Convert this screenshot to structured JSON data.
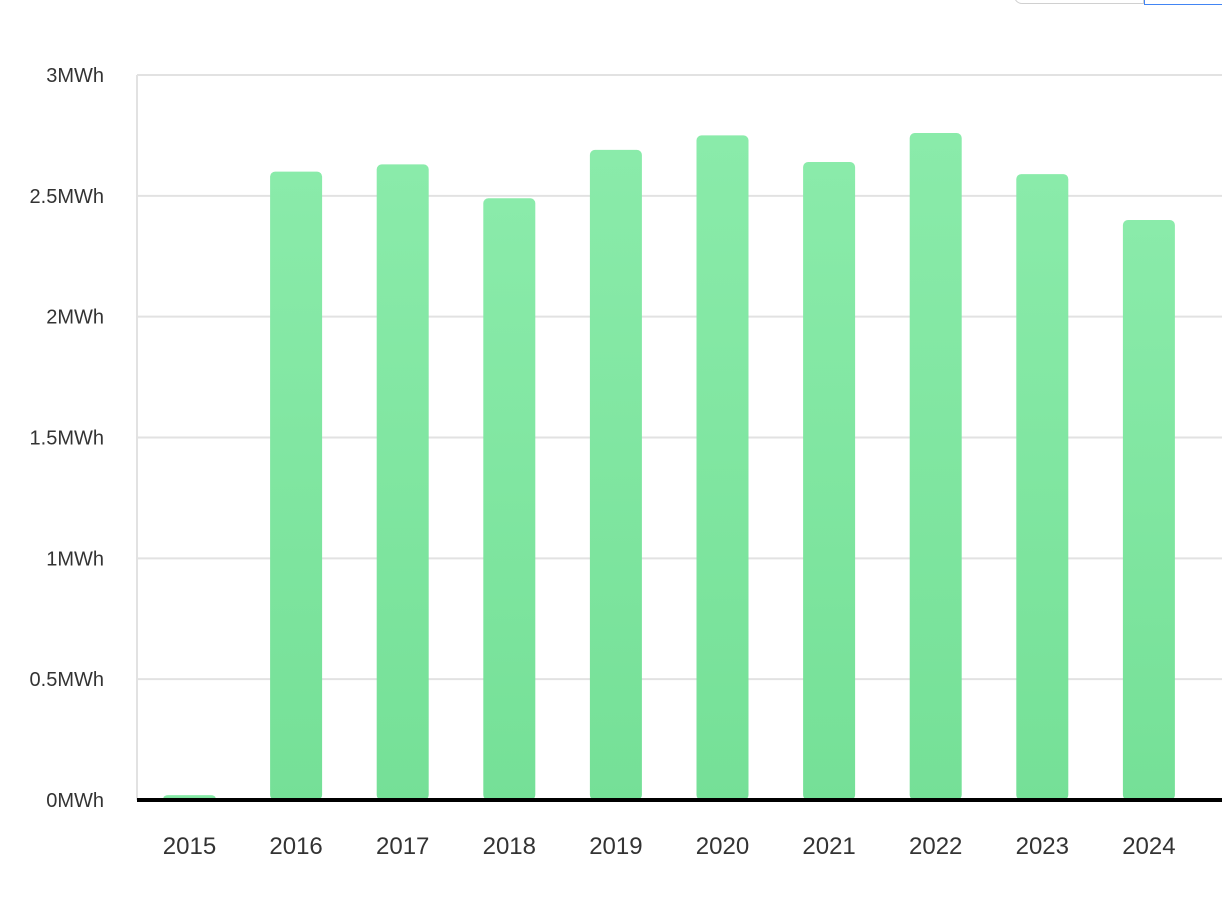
{
  "colors": {
    "bar_top": "#8aebaa",
    "bar_bottom": "#75e097",
    "grid": "#e2e2e2",
    "axis": "#000000",
    "text": "#333333"
  },
  "chart_data": {
    "type": "bar",
    "title": "",
    "xlabel": "",
    "ylabel": "",
    "categories": [
      "2015",
      "2016",
      "2017",
      "2018",
      "2019",
      "2020",
      "2021",
      "2022",
      "2023",
      "2024"
    ],
    "values": [
      0.02,
      2.6,
      2.63,
      2.49,
      2.69,
      2.75,
      2.64,
      2.76,
      2.59,
      2.4
    ],
    "unit": "MWh",
    "ylim": [
      0,
      3
    ],
    "y_ticks": [
      0,
      0.5,
      1,
      1.5,
      2,
      2.5,
      3
    ],
    "y_tick_labels": [
      "0MWh",
      "0.5MWh",
      "1MWh",
      "1.5MWh",
      "2MWh",
      "2.5MWh",
      "3MWh"
    ],
    "grid": true,
    "legend": "none"
  }
}
